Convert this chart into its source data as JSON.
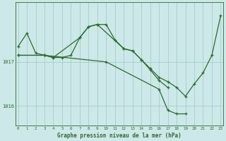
{
  "title": "Graphe pression niveau de la mer (hPa)",
  "background_color": "#cce8e8",
  "grid_color": "#a0c8c8",
  "line_color": "#2d6a2d",
  "hours": [
    0,
    1,
    2,
    3,
    4,
    5,
    6,
    7,
    8,
    9,
    10,
    11,
    12,
    13,
    14,
    15,
    16,
    17,
    18,
    19,
    20,
    21,
    22,
    23
  ],
  "series1": [
    1017.35,
    1017.65,
    1017.2,
    1017.15,
    1017.1,
    1017.1,
    1017.15,
    1017.55,
    1017.8,
    1017.85,
    1017.85,
    1017.5,
    1017.3,
    1017.25,
    1017.05,
    1016.85,
    1016.65,
    1016.55,
    1016.42,
    1016.22,
    1016.5,
    1016.75,
    1017.15,
    1018.05
  ],
  "series2_x": [
    0,
    3,
    4,
    7,
    8,
    9,
    12,
    13,
    14,
    15,
    16,
    17
  ],
  "series2_y": [
    1017.15,
    1017.15,
    1017.1,
    1017.55,
    1017.8,
    1017.85,
    1017.3,
    1017.25,
    1017.05,
    1016.82,
    1016.58,
    1016.42
  ],
  "series3_x": [
    0,
    3,
    10,
    16,
    17,
    18,
    19
  ],
  "series3_y": [
    1017.15,
    1017.15,
    1017.0,
    1016.38,
    1015.9,
    1015.82,
    1015.82
  ],
  "ylim": [
    1015.55,
    1018.35
  ],
  "yticks": [
    1016,
    1017
  ],
  "xlim": [
    -0.3,
    23.3
  ]
}
